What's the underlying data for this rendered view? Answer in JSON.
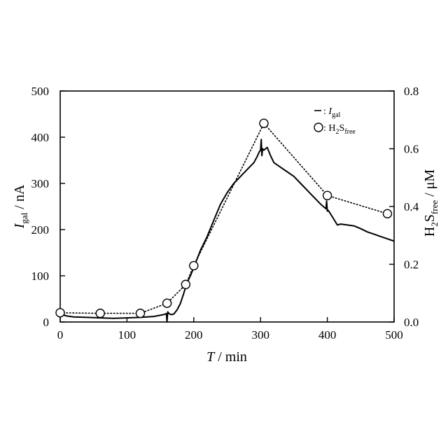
{
  "chart_data": {
    "type": "line",
    "xlabel": {
      "main": "T",
      "unit": " / min"
    },
    "ylabel_left": {
      "main": "I",
      "sub": "gal",
      "unit": " / nA"
    },
    "ylabel_right": {
      "h": "H",
      "two": "2",
      "s": "S",
      "sub": "free",
      "unit": " / μM"
    },
    "xlim": [
      0,
      500
    ],
    "ylim_left": [
      0,
      500
    ],
    "ylim_right": [
      0,
      0.8
    ],
    "xticks": [
      "0",
      "100",
      "200",
      "300",
      "400",
      "500"
    ],
    "yticks_left": [
      "0",
      "100",
      "200",
      "300",
      "400",
      "500"
    ],
    "yticks_right": [
      "0.0",
      "0.2",
      "0.4",
      "0.6",
      "0.8"
    ],
    "legend": {
      "placement": "top-right",
      "items": [
        {
          "marker": "line",
          "prefix": ": ",
          "main": "I",
          "sub": "gal"
        },
        {
          "marker": "circle",
          "prefix": ": ",
          "main": "H",
          "two": "2",
          "s": "S",
          "sub": "free"
        }
      ]
    },
    "series": [
      {
        "axis": "left",
        "style": "solid",
        "x": [
          0,
          2,
          5,
          10,
          20,
          40,
          60,
          80,
          100,
          120,
          140,
          155,
          159,
          160,
          161,
          163,
          166,
          170,
          175,
          180,
          185,
          190,
          195,
          200,
          210,
          220,
          230,
          240,
          250,
          260,
          270,
          280,
          290,
          295,
          298,
          300,
          301,
          302,
          303,
          305,
          310,
          315,
          320,
          330,
          340,
          350,
          360,
          370,
          380,
          390,
          398,
          399,
          400,
          401,
          403,
          410,
          415,
          420,
          430,
          440,
          450,
          460,
          470,
          480,
          490,
          500
        ],
        "y": [
          22,
          18,
          15,
          13,
          11,
          10,
          9,
          8,
          9,
          10,
          12,
          16,
          18,
          0,
          22,
          18,
          16,
          17,
          26,
          40,
          62,
          85,
          100,
          118,
          155,
          185,
          220,
          255,
          280,
          300,
          315,
          330,
          345,
          358,
          368,
          372,
          395,
          360,
          375,
          372,
          378,
          360,
          345,
          335,
          325,
          315,
          300,
          285,
          270,
          255,
          245,
          262,
          240,
          242,
          238,
          222,
          210,
          212,
          210,
          208,
          202,
          195,
          190,
          185,
          180,
          175
        ]
      },
      {
        "axis": "right",
        "style": "dotted",
        "marker": "circle",
        "x": [
          0,
          60,
          120,
          160,
          188,
          200,
          305,
          400,
          490
        ],
        "y": [
          0.032,
          0.03,
          0.03,
          0.065,
          0.13,
          0.195,
          0.688,
          0.438,
          0.375
        ]
      }
    ]
  }
}
